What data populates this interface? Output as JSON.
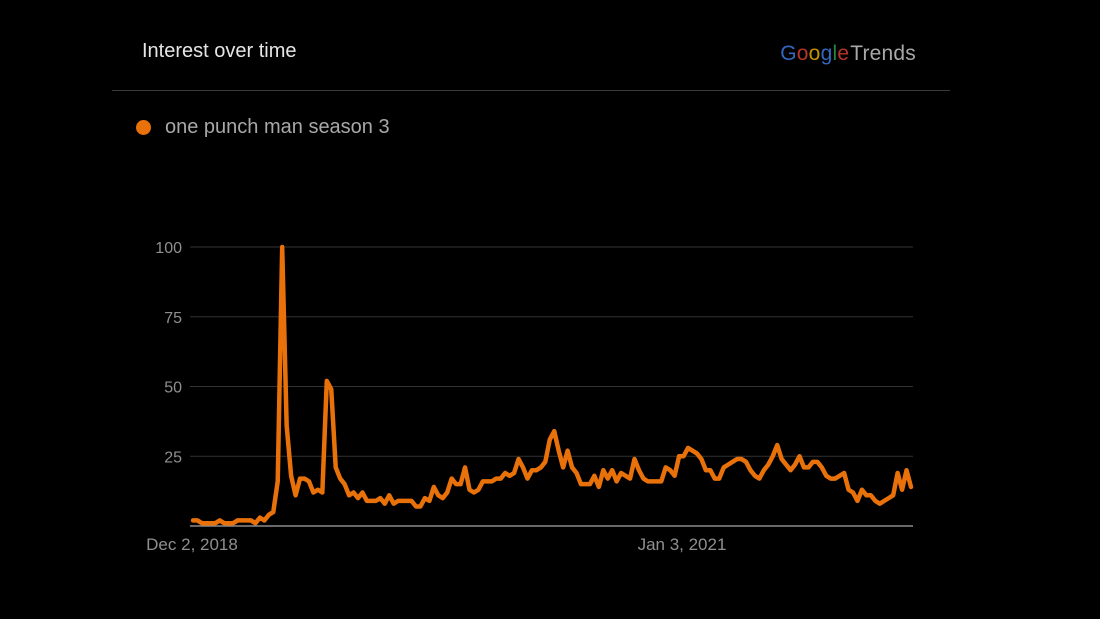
{
  "header": {
    "title": "Interest over time",
    "brand_google": "Google",
    "brand_trends": "Trends"
  },
  "colors": {
    "background": "#000000",
    "series": "#e8710a",
    "grid": "#333333",
    "axis": "#8a8a8a",
    "text": "#a8a8a8"
  },
  "chart_data": {
    "type": "line",
    "title": "Interest over time",
    "xlabel": "",
    "ylabel": "",
    "ylim": [
      0,
      100
    ],
    "yticks": [
      25,
      50,
      75,
      100
    ],
    "xtick_labels": [
      "Dec 2, 2018",
      "Jan 3, 2021"
    ],
    "grid": true,
    "legend_position": "top-left",
    "series": [
      {
        "name": "one punch man season 3",
        "color": "#e8710a",
        "values": [
          2,
          2,
          1,
          1,
          1,
          1,
          2,
          1,
          1,
          1,
          2,
          2,
          2,
          2,
          1,
          3,
          2,
          4,
          5,
          16,
          100,
          36,
          18,
          11,
          17,
          17,
          16,
          12,
          13,
          12,
          52,
          49,
          21,
          17,
          15,
          11,
          12,
          10,
          12,
          9,
          9,
          9,
          10,
          8,
          11,
          8,
          9,
          9,
          9,
          9,
          7,
          7,
          10,
          9,
          14,
          11,
          10,
          12,
          17,
          15,
          15,
          21,
          13,
          12,
          13,
          16,
          16,
          16,
          17,
          17,
          19,
          18,
          19,
          24,
          21,
          17,
          20,
          20,
          21,
          23,
          31,
          34,
          27,
          21,
          27,
          21,
          19,
          15,
          15,
          15,
          18,
          14,
          20,
          17,
          20,
          16,
          19,
          18,
          17,
          24,
          20,
          17,
          16,
          16,
          16,
          16,
          21,
          20,
          18,
          25,
          25,
          28,
          27,
          26,
          24,
          20,
          20,
          17,
          17,
          21,
          22,
          23,
          24,
          24,
          23,
          20,
          18,
          17,
          20,
          22,
          25,
          29,
          24,
          22,
          20,
          22,
          25,
          21,
          21,
          23,
          23,
          21,
          18,
          17,
          17,
          18,
          19,
          13,
          12,
          9,
          13,
          11,
          11,
          9,
          8,
          9,
          10,
          11,
          19,
          13,
          20,
          14
        ]
      }
    ]
  }
}
